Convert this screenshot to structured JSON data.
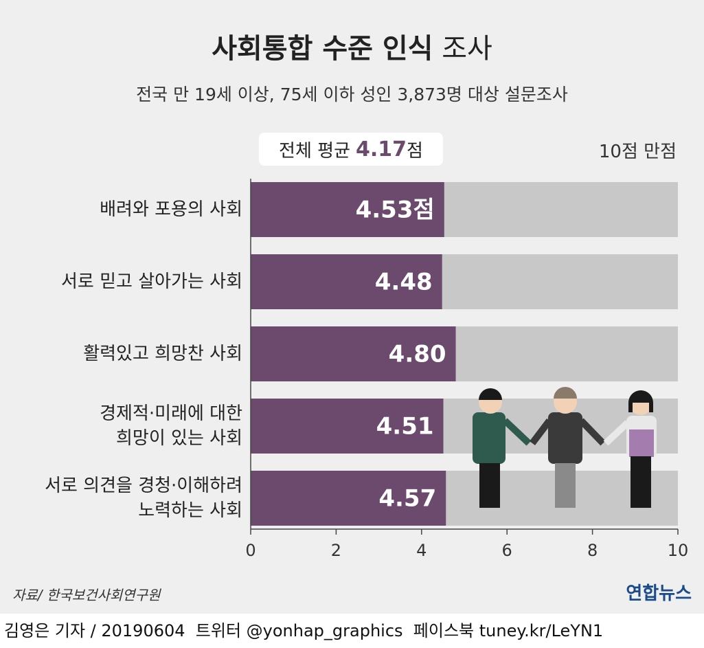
{
  "chart_data": {
    "type": "bar",
    "orientation": "horizontal",
    "title": [
      "사회통합 수준 인식",
      "조사"
    ],
    "subtitle": "전국 만 19세 이상, 75세 이하 성인 3,873명 대상 설문조사",
    "average": {
      "label": "전체 평균",
      "value": 4.17,
      "unit": "점"
    },
    "annotation": "10점 만점",
    "categories": [
      "배려와 포용의 사회",
      "서로 믿고 살아가는 사회",
      "활력있고 희망찬 사회",
      "경제적·미래에 대한\n희망이 있는 사회",
      "서로 의견을 경청·이해하려\n노력하는 사회"
    ],
    "values": [
      4.53,
      4.48,
      4.8,
      4.51,
      4.57
    ],
    "value_labels": [
      "4.53점",
      "4.48",
      "4.80",
      "4.51",
      "4.57"
    ],
    "color": "#6b4a6e",
    "track_color": "#c8c8c8",
    "xlim": [
      0,
      10
    ],
    "xticks": [
      0,
      2,
      4,
      6,
      8,
      10
    ],
    "source": "자료/ 한국보건사회연구원",
    "logo": "연합뉴스",
    "footer": "김영은 기자 / 20190604  트위터 @yonhap_graphics  페이스북 tuney.kr/LeYN1"
  }
}
